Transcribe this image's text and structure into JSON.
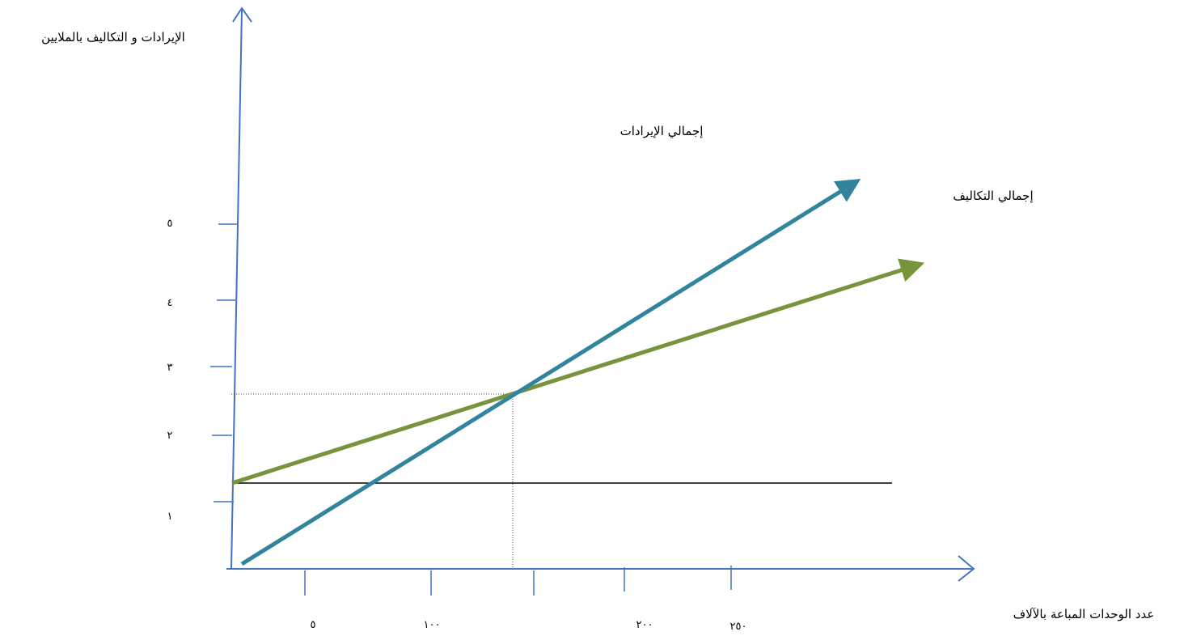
{
  "chart_data": {
    "type": "line",
    "title": "",
    "ylabel": "الإيرادات و التكاليف بالملايين",
    "xlabel": "عدد الوحدات المباعة بالآلاف",
    "y_ticks": [
      "١",
      "٢",
      "٣",
      "٤",
      "٥"
    ],
    "x_ticks": [
      "٥",
      "١٠٠",
      "٢٠٠",
      "٢٥٠"
    ],
    "series": [
      {
        "name": "إجمالي الإيرادات",
        "color": "#31849B"
      },
      {
        "name": "إجمالي التكاليف",
        "color": "#77933C"
      }
    ],
    "fixed_cost_line_color": "#000000",
    "axis_color": "#4472C4",
    "break_even_guides": "dotted",
    "grid": false
  }
}
